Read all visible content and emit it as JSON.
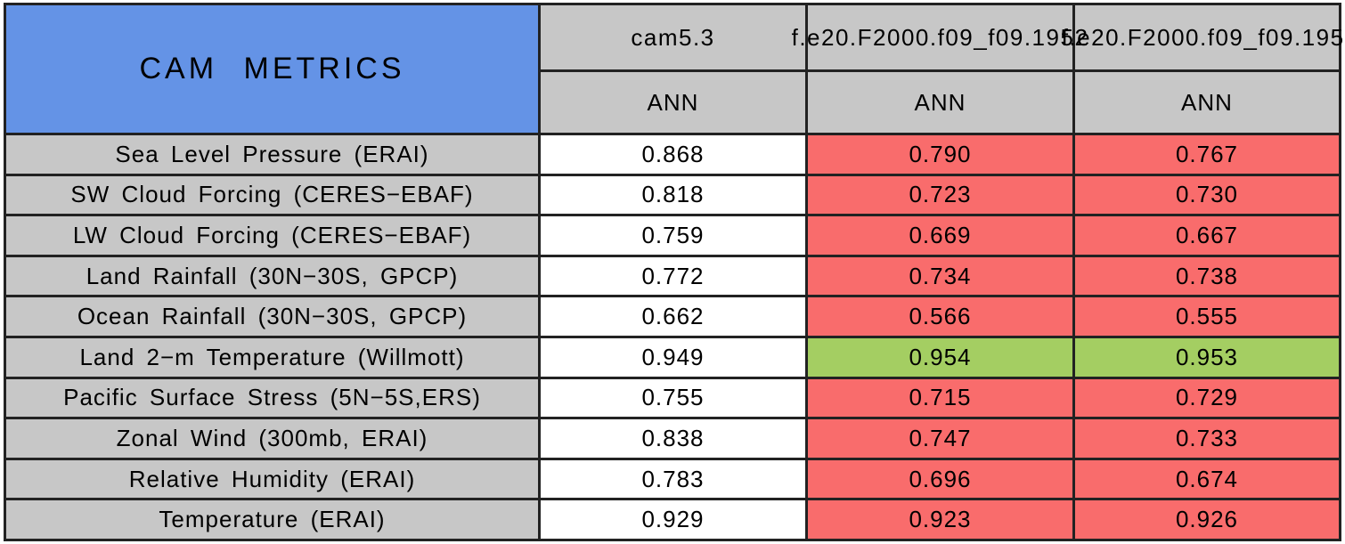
{
  "chart_data": {
    "type": "table",
    "title": "CAM METRICS",
    "columns": [
      {
        "name": "cam5.3",
        "season": "ANN"
      },
      {
        "name": "f.e20.F2000.f09_f09.1952",
        "season": "ANN"
      },
      {
        "name": "f.e20.F2000.f09_f09.195.",
        "season": "ANN"
      }
    ],
    "rows": [
      {
        "label": "Sea Level Pressure (ERAI)",
        "cells": [
          {
            "value": "0.868",
            "state": "neutral"
          },
          {
            "value": "0.790",
            "state": "worse"
          },
          {
            "value": "0.767",
            "state": "worse"
          }
        ]
      },
      {
        "label": "SW Cloud Forcing (CERES−EBAF)",
        "cells": [
          {
            "value": "0.818",
            "state": "neutral"
          },
          {
            "value": "0.723",
            "state": "worse"
          },
          {
            "value": "0.730",
            "state": "worse"
          }
        ]
      },
      {
        "label": "LW Cloud Forcing (CERES−EBAF)",
        "cells": [
          {
            "value": "0.759",
            "state": "neutral"
          },
          {
            "value": "0.669",
            "state": "worse"
          },
          {
            "value": "0.667",
            "state": "worse"
          }
        ]
      },
      {
        "label": "Land Rainfall (30N−30S, GPCP)",
        "cells": [
          {
            "value": "0.772",
            "state": "neutral"
          },
          {
            "value": "0.734",
            "state": "worse"
          },
          {
            "value": "0.738",
            "state": "worse"
          }
        ]
      },
      {
        "label": "Ocean Rainfall (30N−30S, GPCP)",
        "cells": [
          {
            "value": "0.662",
            "state": "neutral"
          },
          {
            "value": "0.566",
            "state": "worse"
          },
          {
            "value": "0.555",
            "state": "worse"
          }
        ]
      },
      {
        "label": "Land 2−m Temperature (Willmott)",
        "cells": [
          {
            "value": "0.949",
            "state": "neutral"
          },
          {
            "value": "0.954",
            "state": "better"
          },
          {
            "value": "0.953",
            "state": "better"
          }
        ]
      },
      {
        "label": "Pacific Surface Stress (5N−5S,ERS)",
        "cells": [
          {
            "value": "0.755",
            "state": "neutral"
          },
          {
            "value": "0.715",
            "state": "worse"
          },
          {
            "value": "0.729",
            "state": "worse"
          }
        ]
      },
      {
        "label": "Zonal Wind (300mb, ERAI)",
        "cells": [
          {
            "value": "0.838",
            "state": "neutral"
          },
          {
            "value": "0.747",
            "state": "worse"
          },
          {
            "value": "0.733",
            "state": "worse"
          }
        ]
      },
      {
        "label": "Relative Humidity (ERAI)",
        "cells": [
          {
            "value": "0.783",
            "state": "neutral"
          },
          {
            "value": "0.696",
            "state": "worse"
          },
          {
            "value": "0.674",
            "state": "worse"
          }
        ]
      },
      {
        "label": "Temperature (ERAI)",
        "cells": [
          {
            "value": "0.929",
            "state": "neutral"
          },
          {
            "value": "0.923",
            "state": "worse"
          },
          {
            "value": "0.926",
            "state": "worse"
          }
        ]
      }
    ],
    "layout": {
      "grid": "on",
      "values_format": "3 decimals",
      "note": "reference column white; red = worse than reference, green = better"
    },
    "colors": {
      "title_bg": "#6493E6",
      "header_bg": "#C7C7C7",
      "reference_bg": "#FFFFFF",
      "worse_bg": "#F96C6C",
      "better_bg": "#A4CE62",
      "grid_line": "#222222",
      "text": "#000000"
    }
  }
}
